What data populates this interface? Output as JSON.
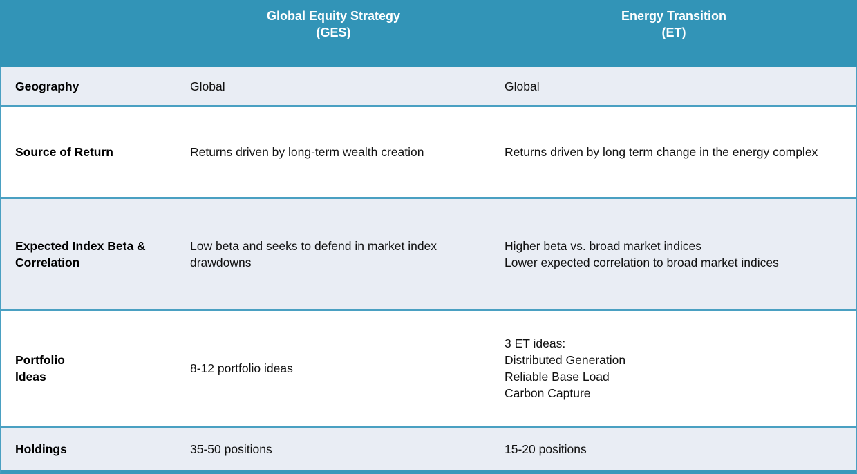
{
  "header": {
    "col_ges": "Global Equity Strategy\n(GES)",
    "col_et": "Energy Transition\n(ET)"
  },
  "rows": [
    {
      "label": "Geography",
      "ges": "Global",
      "et": "Global"
    },
    {
      "label": "Source of Return",
      "ges": "Returns driven by long-term wealth creation",
      "et": "Returns driven by long term change in the energy complex"
    },
    {
      "label": "Expected Index Beta &\nCorrelation",
      "ges": "Low beta and seeks to defend in market index drawdowns",
      "et": "Higher beta vs. broad market indices\nLower expected correlation to broad market indices"
    },
    {
      "label": "Portfolio\nIdeas",
      "ges": "8-12 portfolio ideas",
      "et": "3 ET ideas:\nDistributed Generation\nReliable Base Load\nCarbon Capture"
    },
    {
      "label": "Holdings",
      "ges": "35-50 positions",
      "et": "15-20 positions"
    }
  ],
  "colors": {
    "header_bg": "#3294b7",
    "border_teal": "#4aa0c2",
    "bottom_bar": "#3a99bb",
    "row_alt_bg": "#e9edf4",
    "row_white_bg": "#ffffff",
    "header_text": "#ffffff",
    "body_text": "#111111"
  }
}
